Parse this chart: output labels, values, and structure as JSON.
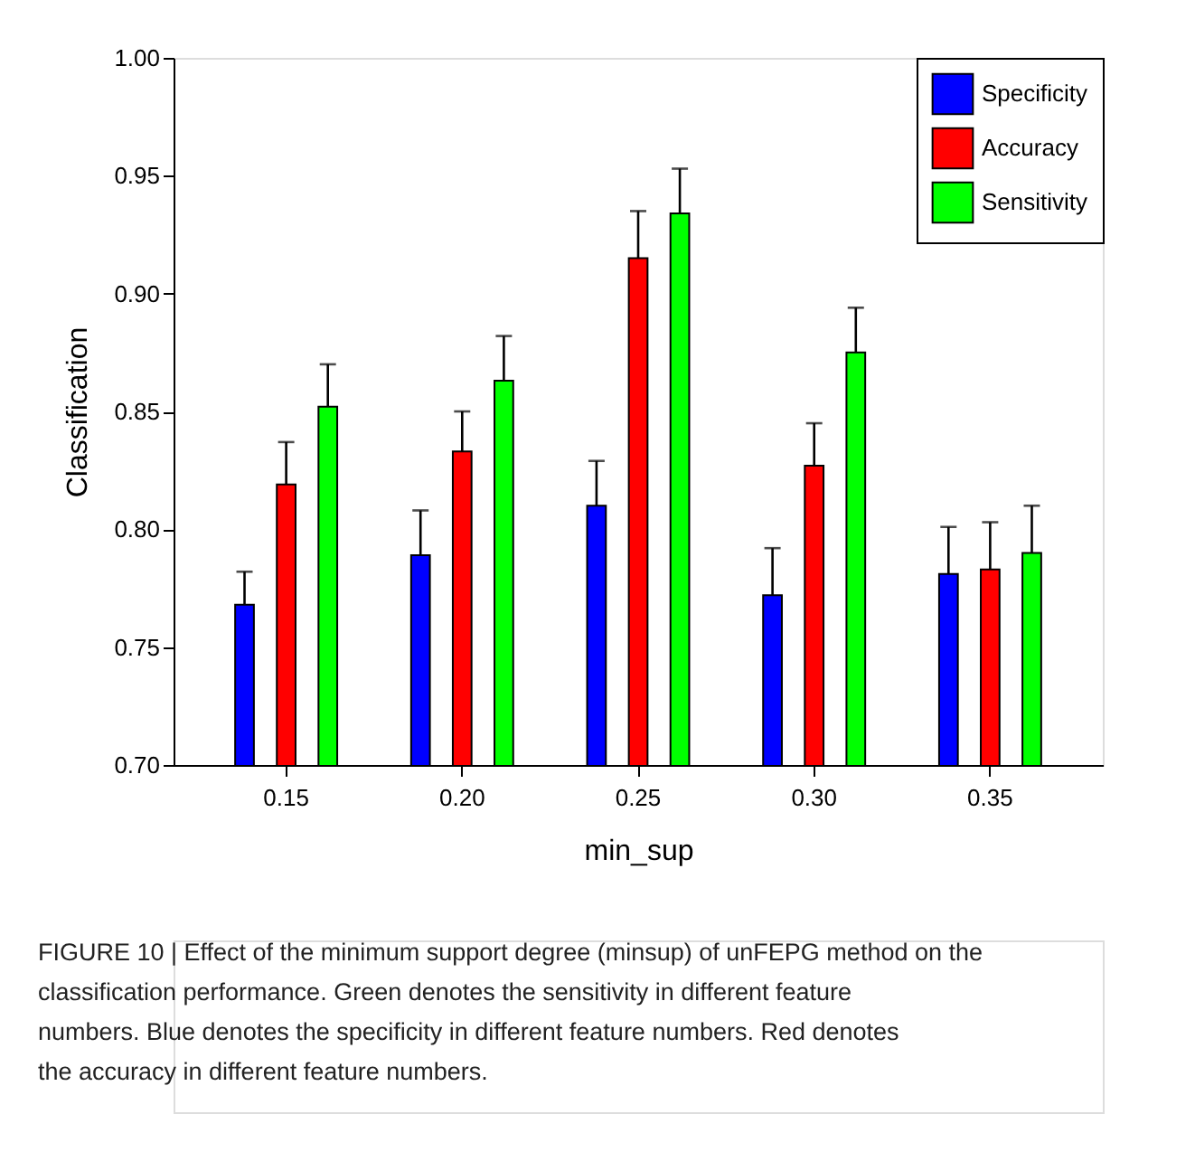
{
  "chart_data": {
    "type": "bar",
    "xlabel": "min_sup",
    "ylabel": "Classification",
    "categories": [
      "0.15",
      "0.20",
      "0.25",
      "0.30",
      "0.35"
    ],
    "series": [
      {
        "name": "Specificity",
        "color": "#0000ff",
        "values": [
          0.768,
          0.789,
          0.81,
          0.772,
          0.781
        ],
        "errors": [
          [
            0.768,
            0.782
          ],
          [
            0.789,
            0.808
          ],
          [
            0.81,
            0.829
          ],
          [
            0.772,
            0.792
          ],
          [
            0.781,
            0.801
          ]
        ]
      },
      {
        "name": "Accuracy",
        "color": "#ff0000",
        "values": [
          0.819,
          0.833,
          0.915,
          0.827,
          0.783
        ],
        "errors": [
          [
            0.819,
            0.837
          ],
          [
            0.833,
            0.85
          ],
          [
            0.915,
            0.935
          ],
          [
            0.827,
            0.845
          ],
          [
            0.783,
            0.803
          ]
        ]
      },
      {
        "name": "Sensitivity",
        "color": "#00ff00",
        "values": [
          0.852,
          0.863,
          0.934,
          0.875,
          0.79
        ],
        "errors": [
          [
            0.852,
            0.87
          ],
          [
            0.863,
            0.882
          ],
          [
            0.934,
            0.953
          ],
          [
            0.875,
            0.894
          ],
          [
            0.79,
            0.81
          ]
        ]
      }
    ],
    "ylim": [
      0.7,
      1.0
    ],
    "yticks": [
      {
        "value": 0.7,
        "label": "0.70"
      },
      0.75,
      {
        "value": 0.8,
        "label": "0.80"
      },
      0.85,
      {
        "value": 0.9,
        "label": "0.90"
      },
      0.95,
      {
        "value": 1.0,
        "label": "1.00"
      }
    ],
    "grid": false,
    "legend": "top right",
    "annotations": [
      "FIGURE 10 | Effect of the minimum support degree (minsup) of unFEPG method on the classification performance. Green denotes the sensitivity in different feature numbers. Blue denotes the specificity in different feature numbers. Red denotes the accuracy in different feature numbers."
    ]
  }
}
